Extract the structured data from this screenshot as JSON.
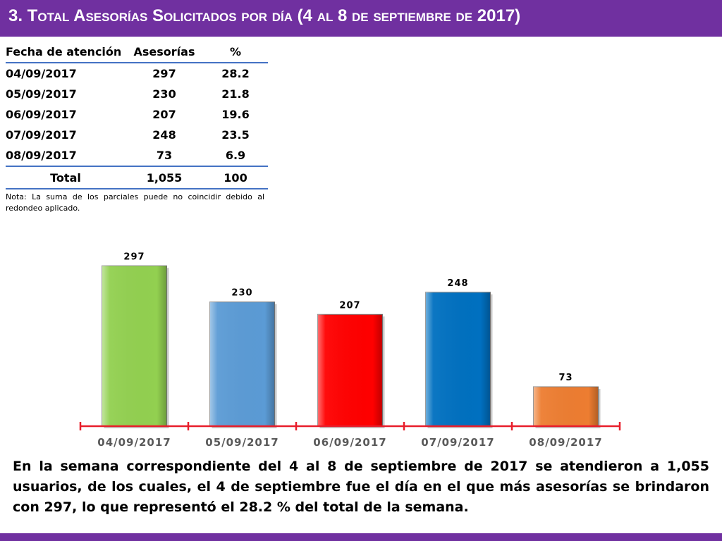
{
  "header": {
    "title": "3.  Total Asesorías Solicitados por día  (4 al 8 de septiembre de 2017)"
  },
  "table": {
    "columns": [
      "Fecha de atención",
      "Asesorías",
      "%"
    ],
    "rows": [
      [
        "04/09/2017",
        "297",
        "28.2"
      ],
      [
        "05/09/2017",
        "230",
        "21.8"
      ],
      [
        "06/09/2017",
        "207",
        "19.6"
      ],
      [
        "07/09/2017",
        "248",
        "23.5"
      ],
      [
        "08/09/2017",
        "73",
        "6.9"
      ]
    ],
    "total": [
      "Total",
      "1,055",
      "100"
    ]
  },
  "note": "Nota: La suma de los parciales puede no coincidir debido al redondeo aplicado.",
  "chart_data": {
    "type": "bar",
    "title": "",
    "xlabel": "",
    "ylabel": "",
    "categories": [
      "04/09/2017",
      "05/09/2017",
      "06/09/2017",
      "07/09/2017",
      "08/09/2017"
    ],
    "values": [
      297,
      230,
      207,
      248,
      73
    ],
    "colors": [
      "#92d050",
      "#5b9bd5",
      "#ff0000",
      "#0070c0",
      "#ed7d31"
    ],
    "axis_color": "#e81e2b",
    "ylim": [
      0,
      300
    ],
    "grid": false,
    "legend": "none"
  },
  "summary": "En la semana correspondiente del 4 al 8 de septiembre de 2017 se atendieron a 1,055 usuarios, de los cuales, el 4 de septiembre fue el día en el que más asesorías se brindaron con 297, lo que representó el 28.2 % del total de la semana."
}
